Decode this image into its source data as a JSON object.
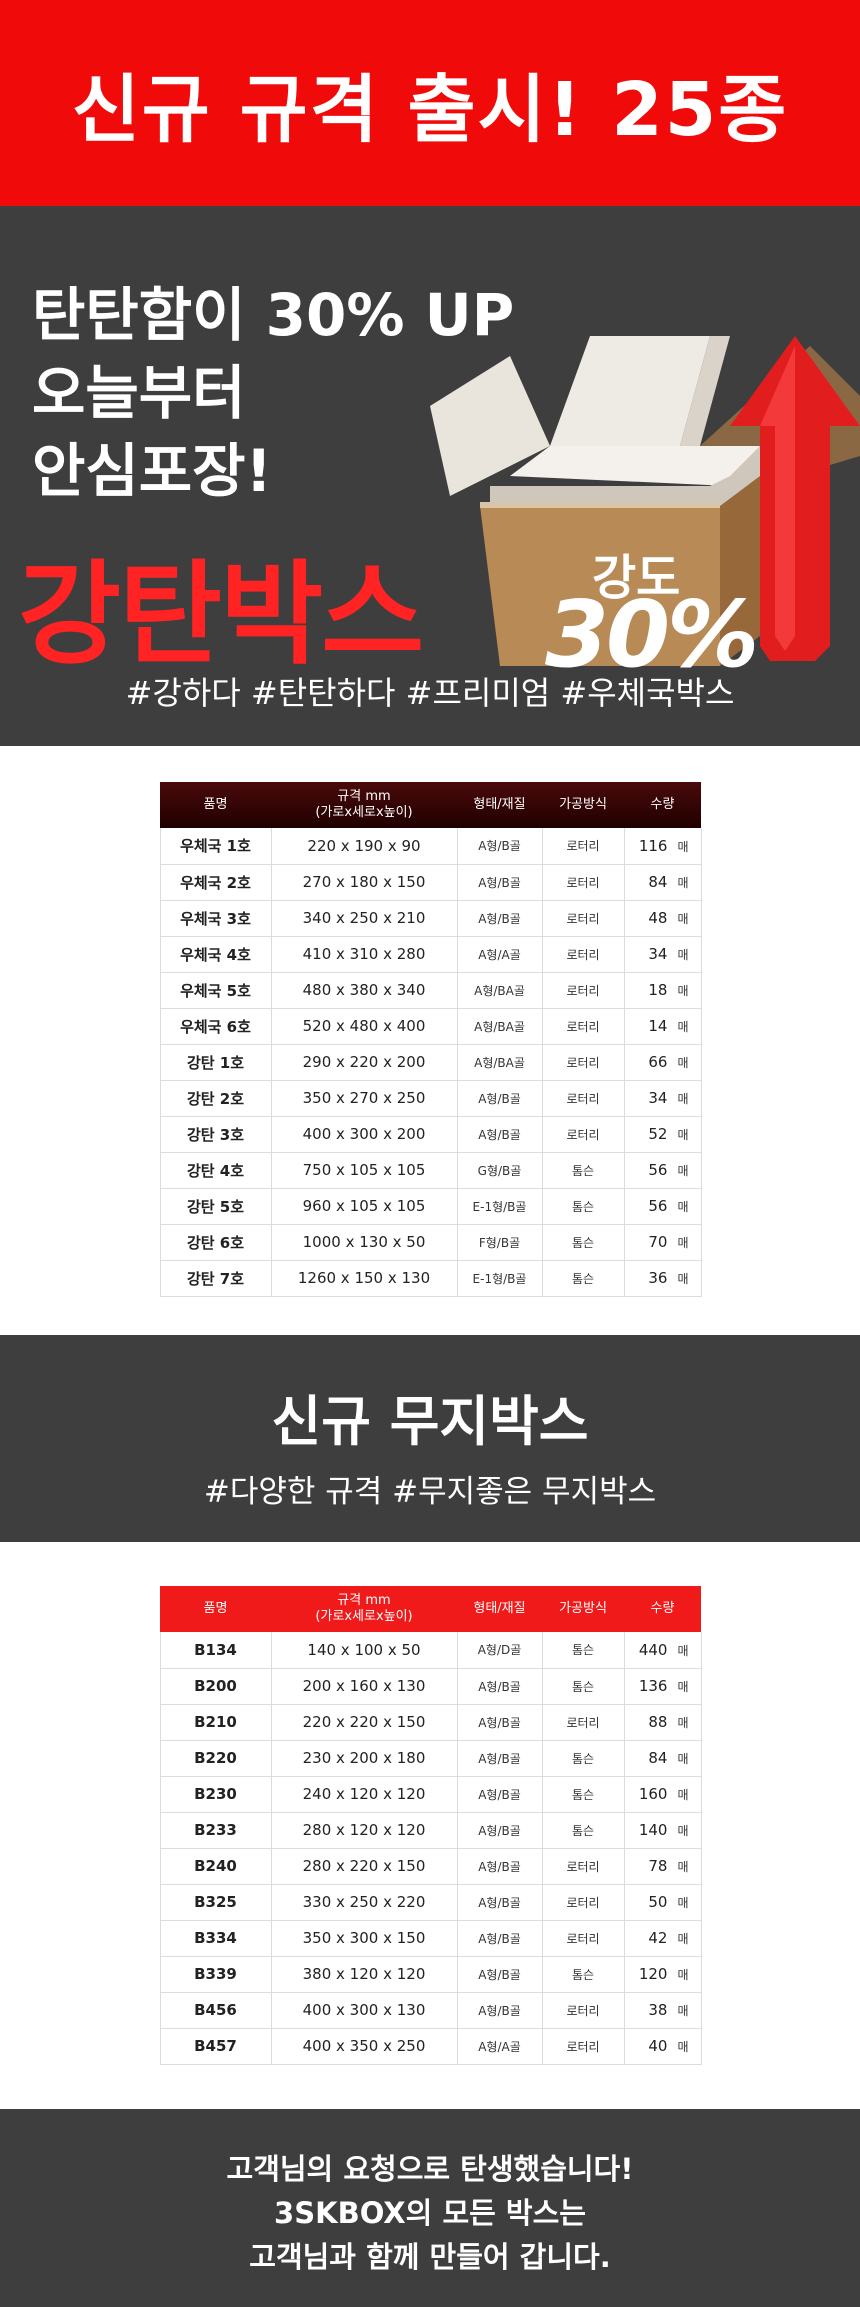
{
  "banner": {
    "title": "신규 규격 출시! 25종"
  },
  "hero": {
    "line1": "탄탄함이 30% UP",
    "line2": "오늘부터",
    "line3": "안심포장!",
    "product": "강탄박스",
    "strength_label": "강도",
    "strength_value": "30%",
    "tags": "#강하다 #탄탄하다 #프리미엄 #우체국박스"
  },
  "table1": {
    "headers": [
      "품명",
      "규격 mm",
      "(가로x세로x높이)",
      "형태/재질",
      "가공방식",
      "수량"
    ],
    "unit": "매",
    "rows": [
      {
        "name": "우체국 1호",
        "size": "220 x 190 x 90",
        "type": "A형/B골",
        "method": "로터리",
        "qty": "116"
      },
      {
        "name": "우체국 2호",
        "size": "270 x 180 x 150",
        "type": "A형/B골",
        "method": "로터리",
        "qty": "84"
      },
      {
        "name": "우체국 3호",
        "size": "340 x 250 x 210",
        "type": "A형/B골",
        "method": "로터리",
        "qty": "48"
      },
      {
        "name": "우체국 4호",
        "size": "410 x 310 x 280",
        "type": "A형/A골",
        "method": "로터리",
        "qty": "34"
      },
      {
        "name": "우체국 5호",
        "size": "480 x 380 x 340",
        "type": "A형/BA골",
        "method": "로터리",
        "qty": "18"
      },
      {
        "name": "우체국 6호",
        "size": "520 x 480 x 400",
        "type": "A형/BA골",
        "method": "로터리",
        "qty": "14"
      },
      {
        "name": "강탄 1호",
        "size": "290 x 220 x 200",
        "type": "A형/BA골",
        "method": "로터리",
        "qty": "66"
      },
      {
        "name": "강탄 2호",
        "size": "350 x 270 x 250",
        "type": "A형/B골",
        "method": "로터리",
        "qty": "34"
      },
      {
        "name": "강탄 3호",
        "size": "400 x 300 x 200",
        "type": "A형/B골",
        "method": "로터리",
        "qty": "52"
      },
      {
        "name": "강탄 4호",
        "size": "750 x 105 x 105",
        "type": "G형/B골",
        "method": "톰슨",
        "qty": "56"
      },
      {
        "name": "강탄 5호",
        "size": "960 x 105 x 105",
        "type": "E-1형/B골",
        "method": "톰슨",
        "qty": "56"
      },
      {
        "name": "강탄 6호",
        "size": "1000 x 130 x 50",
        "type": "F형/B골",
        "method": "톰슨",
        "qty": "70"
      },
      {
        "name": "강탄 7호",
        "size": "1260 x 150 x 130",
        "type": "E-1형/B골",
        "method": "톰슨",
        "qty": "36"
      }
    ]
  },
  "plain_section": {
    "title": "신규 무지박스",
    "subtitle": "#다양한 규격 #무지좋은 무지박스"
  },
  "table2": {
    "headers": [
      "품명",
      "규격 mm",
      "(가로x세로x높이)",
      "형태/재질",
      "가공방식",
      "수량"
    ],
    "unit": "매",
    "rows": [
      {
        "name": "B134",
        "size": "140 x 100 x 50",
        "type": "A형/D골",
        "method": "톰슨",
        "qty": "440"
      },
      {
        "name": "B200",
        "size": "200 x 160 x 130",
        "type": "A형/B골",
        "method": "톰슨",
        "qty": "136"
      },
      {
        "name": "B210",
        "size": "220 x 220 x 150",
        "type": "A형/B골",
        "method": "로터리",
        "qty": "88"
      },
      {
        "name": "B220",
        "size": "230 x 200 x 180",
        "type": "A형/B골",
        "method": "톰슨",
        "qty": "84"
      },
      {
        "name": "B230",
        "size": "240 x 120 x 120",
        "type": "A형/B골",
        "method": "톰슨",
        "qty": "160"
      },
      {
        "name": "B233",
        "size": "280 x 120 x 120",
        "type": "A형/B골",
        "method": "톰슨",
        "qty": "140"
      },
      {
        "name": "B240",
        "size": "280 x 220 x 150",
        "type": "A형/B골",
        "method": "로터리",
        "qty": "78"
      },
      {
        "name": "B325",
        "size": "330 x 250 x 220",
        "type": "A형/B골",
        "method": "로터리",
        "qty": "50"
      },
      {
        "name": "B334",
        "size": "350 x 300 x 150",
        "type": "A형/B골",
        "method": "로터리",
        "qty": "42"
      },
      {
        "name": "B339",
        "size": "380 x 120 x 120",
        "type": "A형/B골",
        "method": "톰슨",
        "qty": "120"
      },
      {
        "name": "B456",
        "size": "400 x 300 x 130",
        "type": "A형/B골",
        "method": "로터리",
        "qty": "38"
      },
      {
        "name": "B457",
        "size": "400 x 350 x 250",
        "type": "A형/A골",
        "method": "로터리",
        "qty": "40"
      }
    ]
  },
  "footer": {
    "line1": "고객님의 요청으로 탄생했습니다!",
    "line2": "3SKBOX의 모든 박스는",
    "line3": "고객님과 함께 만들어 갑니다."
  }
}
